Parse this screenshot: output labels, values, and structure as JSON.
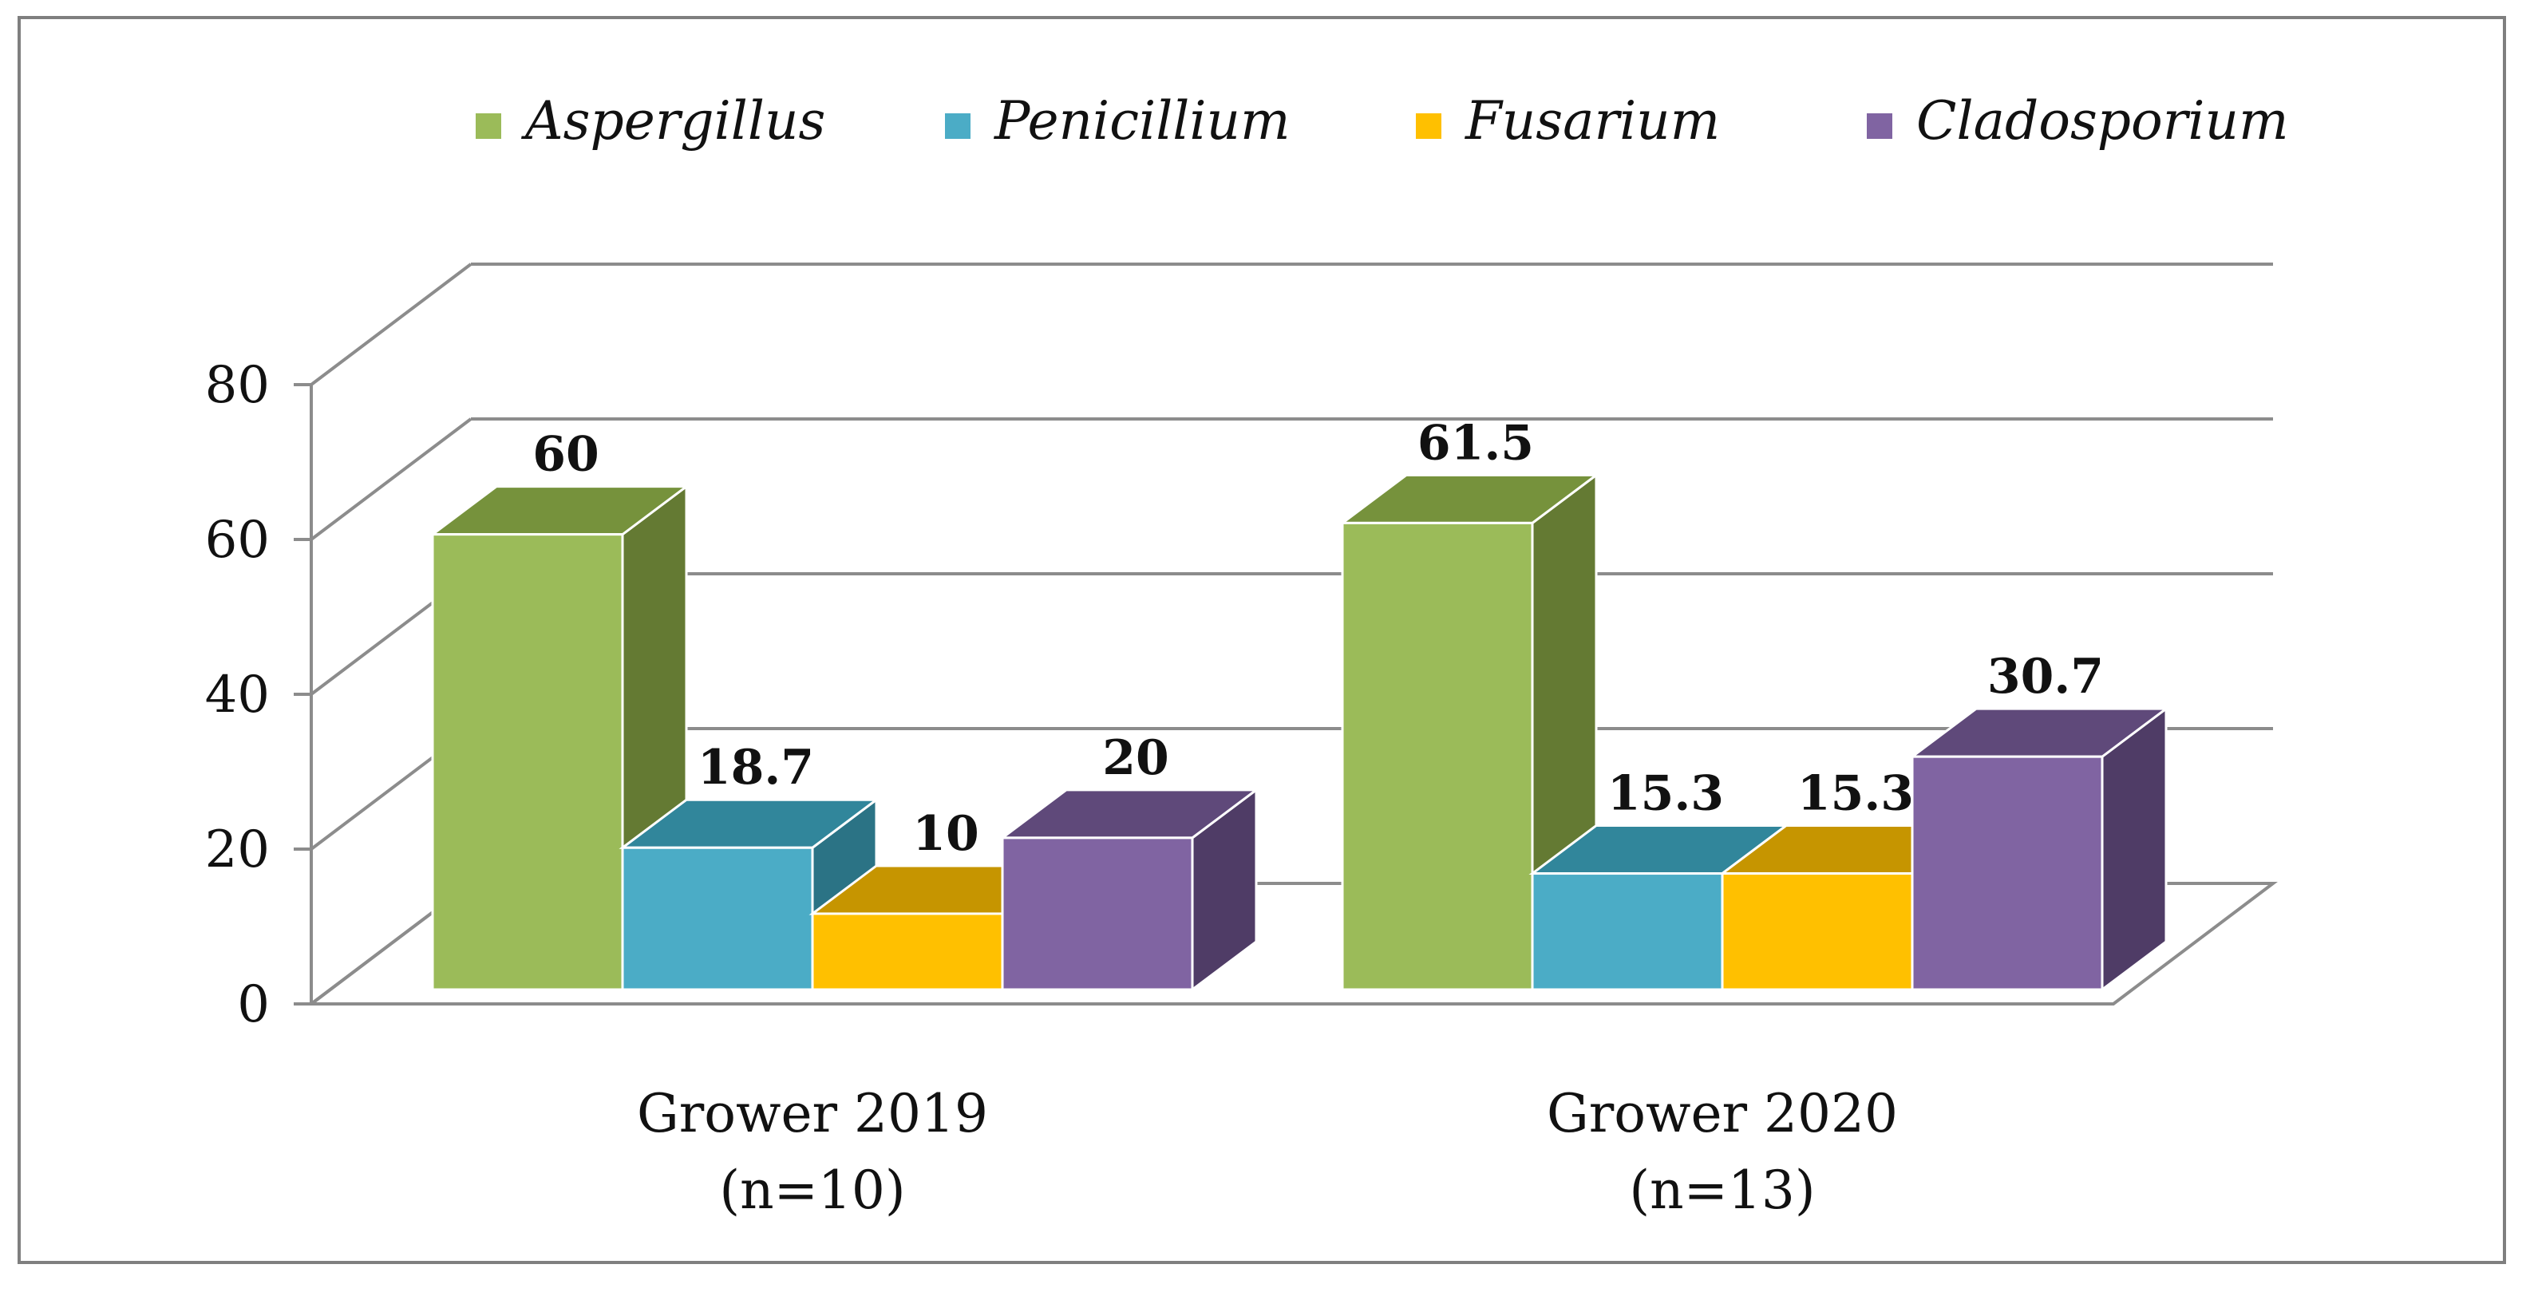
{
  "chart_data": {
    "type": "bar",
    "style": "3d-clustered-column",
    "title": "",
    "xlabel": "",
    "ylabel": "",
    "ylim": [
      0,
      80
    ],
    "yticks": [
      0,
      20,
      40,
      60,
      80
    ],
    "grid": true,
    "legend_position": "top",
    "categories": [
      {
        "line1": "Grower 2019",
        "line2": "(n=10)"
      },
      {
        "line1": "Grower 2020",
        "line2": "(n=13)"
      }
    ],
    "series": [
      {
        "name": "Aspergillus",
        "values": [
          60,
          61.5
        ],
        "labels": [
          "60",
          "61.5"
        ],
        "color": "#9BBB59",
        "top_color": "#76923C",
        "side_color": "#647A33"
      },
      {
        "name": "Penicillium",
        "values": [
          18.7,
          15.3
        ],
        "labels": [
          "18.7",
          "15.3"
        ],
        "color": "#4BACC6",
        "top_color": "#31869B",
        "side_color": "#2B7385"
      },
      {
        "name": "Fusarium",
        "values": [
          10,
          15.3
        ],
        "labels": [
          "10",
          "15.3"
        ],
        "color": "#FFC000",
        "top_color": "#C69500",
        "side_color": "#A67D00"
      },
      {
        "name": "Cladosporium",
        "values": [
          20,
          30.7
        ],
        "labels": [
          "20",
          "30.7"
        ],
        "color": "#8064A2",
        "top_color": "#5F497A",
        "side_color": "#4F3C66"
      }
    ]
  }
}
